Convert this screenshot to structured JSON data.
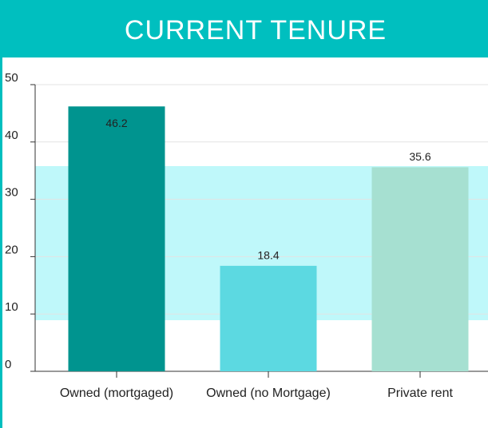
{
  "chart_data": {
    "type": "bar",
    "title": "CURRENT TENURE",
    "categories": [
      "Owned (mortgaged)",
      "Owned (no Mortgage)",
      "Private rent"
    ],
    "values": [
      46.2,
      18.4,
      35.6
    ],
    "colors": [
      "#00948f",
      "#5cd9e1",
      "#a6e0d1"
    ],
    "ylim": [
      0,
      50
    ],
    "yticks": [
      0,
      10,
      20,
      30,
      40,
      50
    ],
    "grid": true
  }
}
